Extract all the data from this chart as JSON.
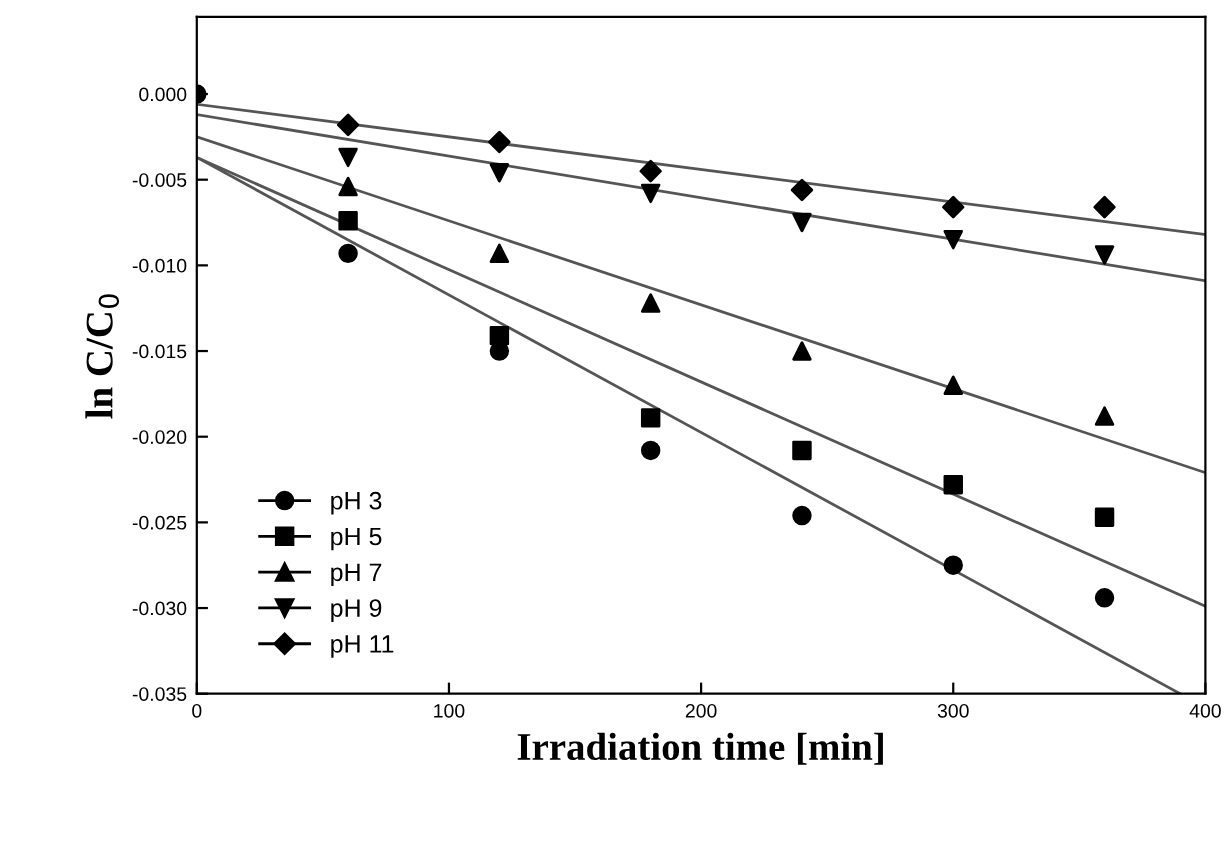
{
  "chart_data": {
    "type": "scatter",
    "xlabel": "Irradiation time [min]",
    "ylabel": "ln C/C$_{0}$",
    "xlim": [
      0,
      400
    ],
    "xticks": [
      0,
      100,
      200,
      300,
      400
    ],
    "ylim": [
      -0.035,
      0.0045
    ],
    "yticks": [
      {
        "value": 0,
        "label": "0.000"
      },
      {
        "value": -0.005,
        "label": "-0.005"
      },
      {
        "value": -0.01,
        "label": "-0.010"
      },
      {
        "value": -0.015,
        "label": "-0.015"
      },
      {
        "value": -0.02,
        "label": "-0.020"
      },
      {
        "value": -0.025,
        "label": "-0.025"
      },
      {
        "value": -0.03,
        "label": "-0.030"
      },
      {
        "value": -0.035,
        "label": "-0.035"
      }
    ],
    "grid": false,
    "legend": "bottom left",
    "series": [
      {
        "name": "pH 3",
        "marker": "circle",
        "color": "#000000",
        "x": [
          0,
          60,
          120,
          180,
          240,
          300,
          360
        ],
        "values": [
          0,
          -0.0093,
          -0.015,
          -0.0208,
          -0.0246,
          -0.0275,
          -0.0294
        ]
      },
      {
        "name": "pH 5",
        "marker": "square",
        "color": "#000000",
        "x": [
          60,
          120,
          180,
          240,
          300,
          360
        ],
        "values": [
          -0.0074,
          -0.0141,
          -0.0189,
          -0.0208,
          -0.0228,
          -0.0247
        ]
      },
      {
        "name": "pH 7",
        "marker": "triangle",
        "color": "#000000",
        "x": [
          60,
          120,
          180,
          240,
          300,
          360
        ],
        "values": [
          -0.0054,
          -0.0093,
          -0.0122,
          -0.015,
          -0.017,
          -0.0188
        ]
      },
      {
        "name": "pH 9",
        "marker": "triangle_down",
        "color": "#000000",
        "x": [
          60,
          120,
          180,
          240,
          300,
          360
        ],
        "values": [
          -0.0037,
          -0.0046,
          -0.0058,
          -0.0075,
          -0.0085,
          -0.0094
        ]
      },
      {
        "name": "pH 11",
        "marker": "diamond",
        "color": "#000000",
        "x": [
          60,
          120,
          180,
          240,
          300,
          360
        ],
        "values": [
          -0.0018,
          -0.0028,
          -0.0045,
          -0.0056,
          -0.0066,
          -0.0066
        ]
      },
      {
        "type": "line",
        "color": "#555555",
        "x": [
          0,
          390
        ],
        "values": [
          -0.0037,
          -0.035
        ]
      },
      {
        "type": "line",
        "color": "#555555",
        "x": [
          0,
          400
        ],
        "values": [
          -0.0037,
          -0.0299
        ]
      },
      {
        "type": "line",
        "color": "#555555",
        "x": [
          0,
          400
        ],
        "values": [
          -0.0025,
          -0.0221
        ]
      },
      {
        "type": "line",
        "color": "#555555",
        "x": [
          0,
          400
        ],
        "values": [
          -0.0012,
          -0.0109
        ]
      },
      {
        "type": "line",
        "color": "#555555",
        "x": [
          0,
          400
        ],
        "values": [
          -0.0006,
          -0.0082
        ]
      }
    ]
  }
}
